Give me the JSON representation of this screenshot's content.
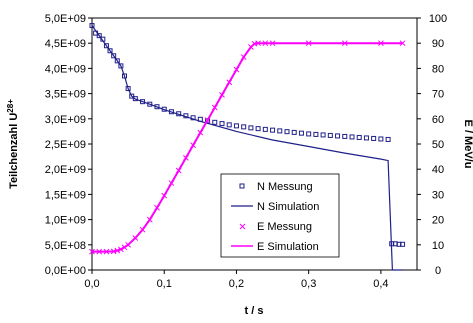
{
  "chart_data": {
    "type": "line",
    "title": "",
    "xlabel": "t / s",
    "ylabel_left": "Teilchenzahl U",
    "ylabel_left_sup": "28+",
    "ylabel_right": "E / MeV/u",
    "xlim": [
      0,
      0.45
    ],
    "ylim_left": [
      0,
      5000000000
    ],
    "ylim_right": [
      0,
      100
    ],
    "x_ticks": [
      0,
      0.1,
      0.2,
      0.3,
      0.4
    ],
    "x_tick_labels": [
      "0,0",
      "0,1",
      "0,2",
      "0,3",
      "0,4"
    ],
    "y_left_ticks": [
      0,
      500000000,
      1000000000,
      1500000000,
      2000000000,
      2500000000,
      3000000000,
      3500000000,
      4000000000,
      4500000000,
      5000000000
    ],
    "y_left_tick_labels": [
      "0,0E+00",
      "5,0E+08",
      "1,0E+09",
      "1,5E+09",
      "2,0E+09",
      "2,5E+09",
      "3,0E+09",
      "3,5E+09",
      "4,0E+09",
      "4,5E+09",
      "5,0E+09"
    ],
    "y_right_ticks": [
      0,
      10,
      20,
      30,
      40,
      50,
      60,
      70,
      80,
      90,
      100
    ],
    "y_right_tick_labels": [
      "0",
      "10",
      "20",
      "30",
      "40",
      "50",
      "60",
      "70",
      "80",
      "90",
      "100"
    ],
    "grid": false,
    "legend_position": "bottom-right",
    "series": [
      {
        "name": "N Messung",
        "axis": "left",
        "style": "markers",
        "marker": "square",
        "color": "#1f1f8a",
        "x": [
          0,
          0.005,
          0.01,
          0.015,
          0.02,
          0.025,
          0.03,
          0.035,
          0.04,
          0.045,
          0.05,
          0.055,
          0.06,
          0.07,
          0.08,
          0.09,
          0.1,
          0.11,
          0.12,
          0.13,
          0.14,
          0.15,
          0.16,
          0.17,
          0.18,
          0.19,
          0.2,
          0.21,
          0.22,
          0.23,
          0.24,
          0.25,
          0.26,
          0.27,
          0.28,
          0.29,
          0.3,
          0.31,
          0.32,
          0.33,
          0.34,
          0.35,
          0.36,
          0.37,
          0.38,
          0.39,
          0.4,
          0.41,
          0.415,
          0.42,
          0.425,
          0.43
        ],
        "y": [
          4850000000,
          4700000000,
          4650000000,
          4580000000,
          4450000000,
          4350000000,
          4250000000,
          4150000000,
          4050000000,
          3850000000,
          3600000000,
          3450000000,
          3400000000,
          3340000000,
          3290000000,
          3240000000,
          3190000000,
          3140000000,
          3100000000,
          3060000000,
          3020000000,
          2990000000,
          2960000000,
          2930000000,
          2905000000,
          2880000000,
          2860000000,
          2840000000,
          2820000000,
          2805000000,
          2790000000,
          2775000000,
          2760000000,
          2745000000,
          2730000000,
          2715000000,
          2700000000,
          2690000000,
          2680000000,
          2670000000,
          2660000000,
          2650000000,
          2640000000,
          2630000000,
          2620000000,
          2610000000,
          2600000000,
          2590000000,
          520000000,
          520000000,
          510000000,
          510000000
        ]
      },
      {
        "name": "N Simulation",
        "axis": "left",
        "style": "line",
        "color": "#1f1f8a",
        "x": [
          0,
          0.01,
          0.02,
          0.03,
          0.04,
          0.045,
          0.05,
          0.055,
          0.06,
          0.08,
          0.1,
          0.15,
          0.2,
          0.25,
          0.3,
          0.35,
          0.4,
          0.41,
          0.416,
          0.42,
          0.43
        ],
        "y": [
          4850000000,
          4650000000,
          4450000000,
          4250000000,
          4050000000,
          3850000000,
          3600000000,
          3450000000,
          3390000000,
          3290000000,
          3180000000,
          2950000000,
          2750000000,
          2580000000,
          2450000000,
          2320000000,
          2200000000,
          2170000000,
          0,
          0,
          0
        ]
      },
      {
        "name": "E Messung",
        "axis": "right",
        "style": "markers",
        "marker": "x",
        "color": "#ff00ff",
        "x": [
          0,
          0.01,
          0.02,
          0.03,
          0.035,
          0.04,
          0.045,
          0.05,
          0.06,
          0.07,
          0.08,
          0.09,
          0.1,
          0.11,
          0.12,
          0.13,
          0.14,
          0.15,
          0.16,
          0.17,
          0.18,
          0.19,
          0.2,
          0.21,
          0.22,
          0.225,
          0.23,
          0.24,
          0.25,
          0.3,
          0.35,
          0.4,
          0.43
        ],
        "y": [
          7.3,
          7.3,
          7.3,
          7.4,
          7.7,
          8.2,
          9,
          10,
          12.7,
          16,
          20,
          24.7,
          29.5,
          34.5,
          39.5,
          44.5,
          49.5,
          54.5,
          59.5,
          64.5,
          69.5,
          74.5,
          79.5,
          84.5,
          88.5,
          89.8,
          90,
          90,
          90,
          90,
          90,
          90,
          90
        ]
      },
      {
        "name": "E Simulation",
        "axis": "right",
        "style": "line",
        "color": "#ff00ff",
        "x": [
          0,
          0.01,
          0.02,
          0.03,
          0.035,
          0.04,
          0.045,
          0.05,
          0.06,
          0.07,
          0.08,
          0.09,
          0.1,
          0.11,
          0.12,
          0.13,
          0.14,
          0.15,
          0.16,
          0.17,
          0.18,
          0.19,
          0.2,
          0.21,
          0.22,
          0.225,
          0.23,
          0.24,
          0.25,
          0.3,
          0.35,
          0.4,
          0.43
        ],
        "y": [
          7.3,
          7.3,
          7.3,
          7.4,
          7.7,
          8.2,
          9,
          10,
          12.7,
          16,
          20,
          24.7,
          29.5,
          34.5,
          39.5,
          44.5,
          49.5,
          54.5,
          59.5,
          64.5,
          69.5,
          74.5,
          79.5,
          84.5,
          88.5,
          89.8,
          90,
          90,
          90,
          90,
          90,
          90,
          90
        ]
      }
    ]
  }
}
